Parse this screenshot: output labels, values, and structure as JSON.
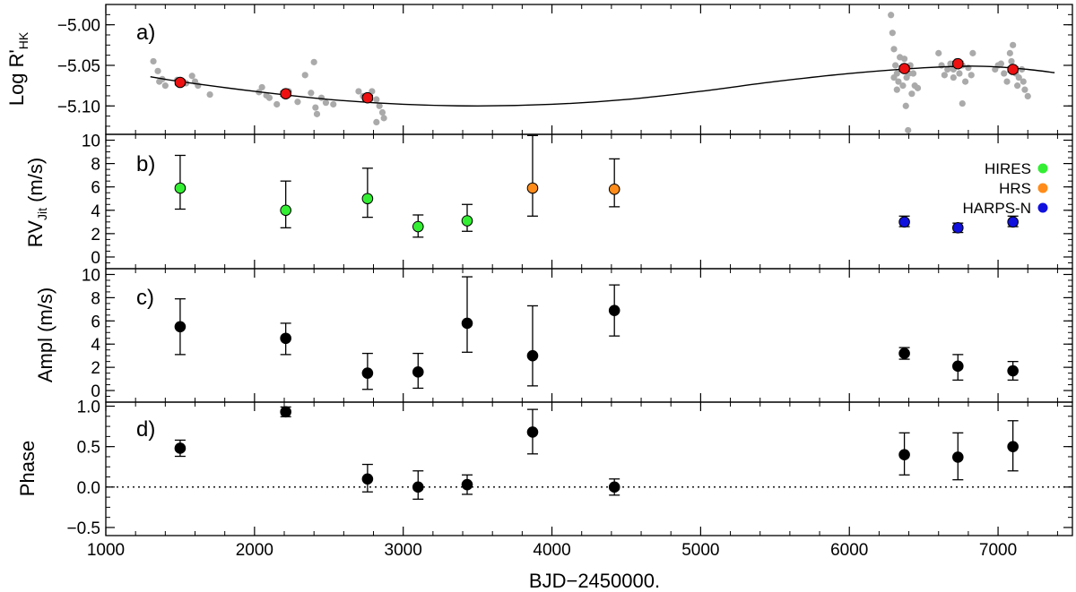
{
  "chart_data": [
    {
      "panel_label": "a)",
      "type": "scatter",
      "ylabel_main": "Log R'",
      "ylabel_sub": "HK",
      "xlim": [
        1000,
        7500
      ],
      "ylim": [
        -5.135,
        -4.975
      ],
      "yticks": [
        -5.1,
        -5.05,
        -5.0
      ],
      "ytick_labels": [
        "−5.10",
        "−5.05",
        "−5.00"
      ],
      "colors": {
        "raw": "#aaaaaa",
        "binned": "#ee1111",
        "fit": "#000000"
      },
      "fit_curve": [
        [
          1300,
          -5.064
        ],
        [
          1500,
          -5.07
        ],
        [
          2000,
          -5.082
        ],
        [
          2500,
          -5.092
        ],
        [
          3000,
          -5.098
        ],
        [
          3500,
          -5.1
        ],
        [
          4000,
          -5.098
        ],
        [
          4500,
          -5.092
        ],
        [
          5000,
          -5.082
        ],
        [
          5500,
          -5.07
        ],
        [
          6000,
          -5.06
        ],
        [
          6500,
          -5.053
        ],
        [
          6800,
          -5.051
        ],
        [
          7000,
          -5.052
        ],
        [
          7200,
          -5.055
        ],
        [
          7380,
          -5.059
        ]
      ],
      "series": [
        {
          "values": [
            [
              1320,
              -5.045
            ],
            [
              1350,
              -5.057
            ],
            [
              1380,
              -5.067
            ],
            [
              1360,
              -5.07
            ],
            [
              1400,
              -5.075
            ],
            [
              1480,
              -5.068
            ],
            [
              1540,
              -5.072
            ],
            [
              1580,
              -5.063
            ],
            [
              1600,
              -5.07
            ],
            [
              1620,
              -5.075
            ],
            [
              1700,
              -5.086
            ],
            [
              2030,
              -5.083
            ],
            [
              2050,
              -5.077
            ],
            [
              2080,
              -5.087
            ],
            [
              2100,
              -5.09
            ],
            [
              2150,
              -5.098
            ],
            [
              2230,
              -5.082
            ],
            [
              2290,
              -5.095
            ],
            [
              2340,
              -5.062
            ],
            [
              2380,
              -5.084
            ],
            [
              2400,
              -5.046
            ],
            [
              2410,
              -5.102
            ],
            [
              2420,
              -5.11
            ],
            [
              2450,
              -5.09
            ],
            [
              2480,
              -5.096
            ],
            [
              2530,
              -5.098
            ],
            [
              2700,
              -5.082
            ],
            [
              2730,
              -5.088
            ],
            [
              2790,
              -5.082
            ],
            [
              2820,
              -5.092
            ],
            [
              2840,
              -5.1
            ],
            [
              2860,
              -5.108
            ],
            [
              2820,
              -5.12
            ],
            [
              2870,
              -5.115
            ],
            [
              6280,
              -4.988
            ],
            [
              6290,
              -5.01
            ],
            [
              6300,
              -5.03
            ],
            [
              6310,
              -5.05
            ],
            [
              6320,
              -5.06
            ],
            [
              6330,
              -5.07
            ],
            [
              6340,
              -5.04
            ],
            [
              6350,
              -5.055
            ],
            [
              6360,
              -5.075
            ],
            [
              6370,
              -5.042
            ],
            [
              6385,
              -5.065
            ],
            [
              6400,
              -5.06
            ],
            [
              6410,
              -5.05
            ],
            [
              6420,
              -5.085
            ],
            [
              6440,
              -5.075
            ],
            [
              6460,
              -5.078
            ],
            [
              6380,
              -5.1
            ],
            [
              6395,
              -5.13
            ],
            [
              6300,
              -5.065
            ],
            [
              6320,
              -5.08
            ],
            [
              6430,
              -5.06
            ],
            [
              6600,
              -5.035
            ],
            [
              6620,
              -5.05
            ],
            [
              6640,
              -5.062
            ],
            [
              6660,
              -5.055
            ],
            [
              6680,
              -5.048
            ],
            [
              6700,
              -5.055
            ],
            [
              6720,
              -5.045
            ],
            [
              6740,
              -5.06
            ],
            [
              6760,
              -5.05
            ],
            [
              6780,
              -5.07
            ],
            [
              6800,
              -5.053
            ],
            [
              6820,
              -5.062
            ],
            [
              6830,
              -5.035
            ],
            [
              6760,
              -5.097
            ],
            [
              6700,
              -5.065
            ],
            [
              6980,
              -5.055
            ],
            [
              7000,
              -5.05
            ],
            [
              7020,
              -5.048
            ],
            [
              7040,
              -5.06
            ],
            [
              7060,
              -5.07
            ],
            [
              7080,
              -5.035
            ],
            [
              7100,
              -5.025
            ],
            [
              7120,
              -5.06
            ],
            [
              7140,
              -5.065
            ],
            [
              7160,
              -5.055
            ],
            [
              7180,
              -5.08
            ],
            [
              7200,
              -5.088
            ],
            [
              7090,
              -5.045
            ],
            [
              7130,
              -5.075
            ],
            [
              7170,
              -5.07
            ]
          ]
        },
        {
          "values": [
            [
              1500,
              -5.071
            ],
            [
              2210,
              -5.085
            ],
            [
              2760,
              -5.09
            ],
            [
              6370,
              -5.054
            ],
            [
              6730,
              -5.048
            ],
            [
              7100,
              -5.055
            ]
          ],
          "errors": [
            0.003,
            0.003,
            0.003,
            0.003,
            0.003,
            0.003
          ]
        }
      ]
    },
    {
      "panel_label": "b)",
      "type": "scatter",
      "ylabel_main": "RV",
      "ylabel_sub": "Jit",
      "ylabel_tail": " (m/s)",
      "xlim": [
        1000,
        7500
      ],
      "ylim": [
        -1,
        10.5
      ],
      "yticks": [
        0,
        2,
        4,
        6,
        8,
        10
      ],
      "ytick_labels": [
        "0",
        "2",
        "4",
        "6",
        "8",
        "10"
      ],
      "legend_position": "right",
      "series": [
        {
          "name": "HIRES",
          "color": "#33ee33",
          "x": [
            1500,
            2210,
            2760,
            3100,
            3430
          ],
          "values": [
            5.9,
            4.0,
            5.0,
            2.6,
            3.1
          ],
          "err_low": [
            1.8,
            1.5,
            1.6,
            0.9,
            0.9
          ],
          "err_high": [
            2.8,
            2.5,
            2.6,
            1.0,
            1.4
          ]
        },
        {
          "name": "HRS",
          "color": "#ff8c1a",
          "x": [
            3870,
            4420
          ],
          "values": [
            5.9,
            5.8
          ],
          "err_low": [
            2.4,
            1.5
          ],
          "err_high": [
            4.5,
            2.6
          ]
        },
        {
          "name": "HARPS-N",
          "color": "#1111dd",
          "x": [
            6370,
            6730,
            7100
          ],
          "values": [
            3.0,
            2.5,
            3.0
          ],
          "err_low": [
            0.4,
            0.4,
            0.4
          ],
          "err_high": [
            0.5,
            0.4,
            0.5
          ]
        }
      ]
    },
    {
      "panel_label": "c)",
      "type": "scatter",
      "ylabel_main": "Ampl (m/s)",
      "xlim": [
        1000,
        7500
      ],
      "ylim": [
        -1,
        10.5
      ],
      "yticks": [
        0,
        2,
        4,
        6,
        8,
        10
      ],
      "ytick_labels": [
        "0",
        "2",
        "4",
        "6",
        "8",
        "10"
      ],
      "series": [
        {
          "color": "#000000",
          "x": [
            1500,
            2210,
            2760,
            3100,
            3430,
            3870,
            4420,
            6370,
            6730,
            7100
          ],
          "values": [
            5.5,
            4.5,
            1.5,
            1.6,
            5.8,
            3.0,
            6.9,
            3.2,
            2.1,
            1.7
          ],
          "err_low": [
            2.4,
            1.4,
            1.4,
            1.4,
            2.5,
            2.6,
            2.2,
            0.5,
            1.2,
            0.8
          ],
          "err_high": [
            2.4,
            1.3,
            1.7,
            1.6,
            4.0,
            4.3,
            2.2,
            0.5,
            1.0,
            0.8
          ]
        }
      ]
    },
    {
      "panel_label": "d)",
      "type": "scatter",
      "ylabel_main": "Phase",
      "xlabel": "BJD−2450000.",
      "xlim": [
        1000,
        7500
      ],
      "ylim": [
        -0.6,
        1.05
      ],
      "xticks": [
        1000,
        2000,
        3000,
        4000,
        5000,
        6000,
        7000
      ],
      "xtick_labels": [
        "1000",
        "2000",
        "3000",
        "4000",
        "5000",
        "6000",
        "7000"
      ],
      "yticks": [
        -0.5,
        0.0,
        0.5,
        1.0
      ],
      "ytick_labels": [
        "−0.5",
        "0.0",
        "0.5",
        "1.0"
      ],
      "reference_line": 0.0,
      "series": [
        {
          "color": "#000000",
          "x": [
            1500,
            2210,
            2760,
            3100,
            3430,
            3870,
            4420,
            6370,
            6730,
            7100
          ],
          "values": [
            0.48,
            0.93,
            0.1,
            0.0,
            0.03,
            0.68,
            0.0,
            0.4,
            0.37,
            0.5
          ],
          "err_low": [
            0.1,
            0.06,
            0.16,
            0.15,
            0.12,
            0.27,
            0.1,
            0.25,
            0.28,
            0.3
          ],
          "err_high": [
            0.1,
            0.06,
            0.18,
            0.2,
            0.12,
            0.28,
            0.1,
            0.27,
            0.3,
            0.32
          ]
        }
      ]
    }
  ]
}
